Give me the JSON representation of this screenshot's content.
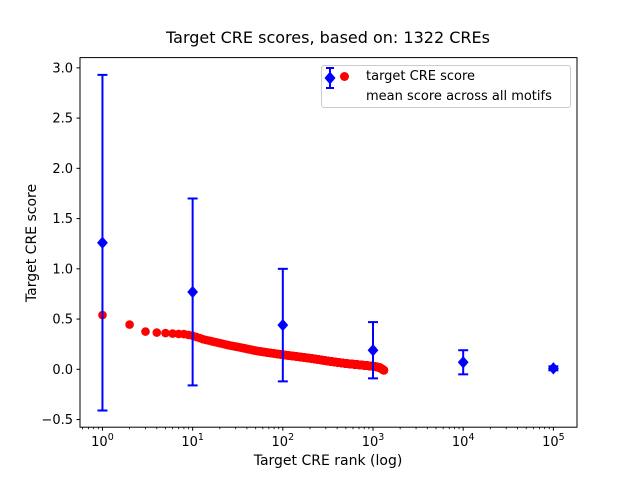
{
  "title": "Target CRE scores, based on: 1322 CREs",
  "colors": {
    "target_series": "#ff0000",
    "mean_series": "#0000ff",
    "axis": "#000000",
    "legend_border": "#cccccc",
    "background": "#ffffff"
  },
  "axes": {
    "xlabel": "Target CRE rank (log)",
    "ylabel": "Target CRE score",
    "x_scale": "log",
    "x_tick_exponents": [
      0,
      1,
      2,
      3,
      4,
      5
    ],
    "y_ticks": [
      -0.5,
      0.0,
      0.5,
      1.0,
      1.5,
      2.0,
      2.5,
      3.0
    ],
    "xlim_log10": [
      -0.249,
      5.262
    ],
    "ylim": [
      -0.576,
      3.102
    ],
    "grid": false
  },
  "legend": {
    "position": "upper right",
    "items": [
      {
        "label": "target CRE score",
        "marker": "circle",
        "color": "#ff0000"
      },
      {
        "label": "mean score across all motifs",
        "marker": "diamond-errorbar",
        "color": "#0000ff"
      }
    ]
  },
  "chart_data": {
    "type": "scatter",
    "title": "Target CRE scores, based on: 1322 CREs",
    "xlabel": "Target CRE rank (log)",
    "ylabel": "Target CRE score",
    "x_scale": "log",
    "xlim": [
      0.56,
      183000
    ],
    "ylim": [
      -0.576,
      3.102
    ],
    "legend_position": "upper right",
    "grid": false,
    "series": [
      {
        "name": "target CRE score",
        "marker": "circle",
        "color": "#ff0000",
        "n_points": 1322,
        "points_interpolated_from_anchors": true,
        "anchor_points": {
          "rank": [
            1,
            2,
            3,
            4,
            5,
            6,
            8,
            10,
            13,
            18,
            25,
            35,
            50,
            70,
            100,
            150,
            220,
            330,
            500,
            700,
            900,
            1100,
            1200,
            1322
          ],
          "score": [
            0.54,
            0.445,
            0.375,
            0.365,
            0.36,
            0.355,
            0.35,
            0.335,
            0.3,
            0.27,
            0.24,
            0.215,
            0.185,
            0.165,
            0.145,
            0.125,
            0.105,
            0.08,
            0.058,
            0.045,
            0.035,
            0.025,
            0.015,
            -0.01
          ]
        }
      },
      {
        "name": "mean score across all motifs",
        "marker": "diamond",
        "color": "#0000ff",
        "x": [
          1,
          10,
          100,
          1000,
          10000,
          100000
        ],
        "mean": [
          1.26,
          0.77,
          0.44,
          0.19,
          0.07,
          0.01
        ],
        "err": [
          1.67,
          0.93,
          0.56,
          0.28,
          0.12,
          0.02
        ]
      }
    ]
  }
}
